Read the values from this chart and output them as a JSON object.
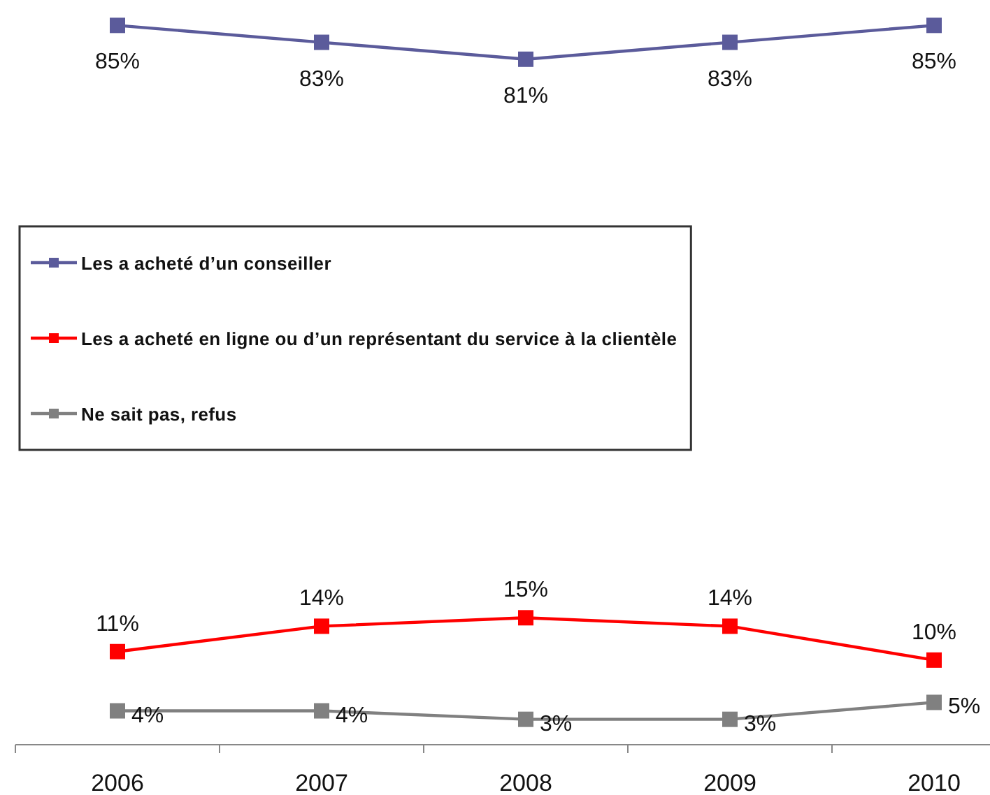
{
  "chart_data": {
    "type": "line",
    "categories": [
      "2006",
      "2007",
      "2008",
      "2009",
      "2010"
    ],
    "series": [
      {
        "name": "Les a acheté d’un conseiller",
        "color": "#5b5b9b",
        "values": [
          85,
          83,
          81,
          83,
          85
        ],
        "value_labels": [
          "85%",
          "83%",
          "81%",
          "83%",
          "85%"
        ]
      },
      {
        "name": "Les a acheté en ligne ou d’un représentant du service à la clientèle",
        "color": "#ff0000",
        "values": [
          11,
          14,
          15,
          14,
          10
        ],
        "value_labels": [
          "11%",
          "14%",
          "15%",
          "14%",
          "10%"
        ]
      },
      {
        "name": "Ne sait pas, refus",
        "color": "#808080",
        "values": [
          4,
          4,
          3,
          3,
          5
        ],
        "value_labels": [
          "4%",
          "4%",
          "3%",
          "3%",
          "5%"
        ]
      }
    ],
    "ylim": [
      0,
      88
    ],
    "tick_labels": "x",
    "legend": "left",
    "marker": "square",
    "line_style": "solid"
  }
}
